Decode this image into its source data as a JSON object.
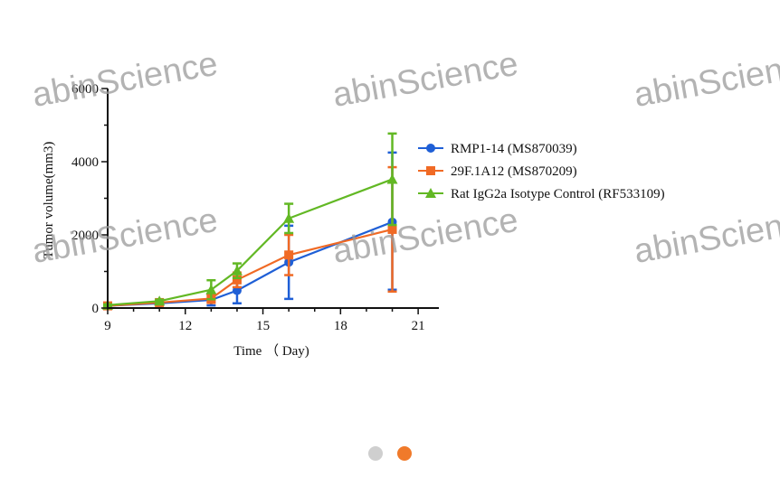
{
  "chart_data": {
    "type": "line",
    "xlabel": "Time （ Day)",
    "ylabel": "Tumor volume(mm3)",
    "xlim": [
      9,
      21.8
    ],
    "ylim": [
      0,
      6000
    ],
    "xticks": [
      9,
      12,
      15,
      18,
      21
    ],
    "yticks": [
      0,
      2000,
      4000,
      6000
    ],
    "legend_position": "right",
    "series": [
      {
        "name": "RMP1-14 (MS870039)",
        "color": "#1f5fd6",
        "marker": "circle",
        "x": [
          9,
          11,
          13,
          14,
          16,
          20
        ],
        "y": [
          60,
          130,
          220,
          480,
          1250,
          2350
        ],
        "err_low": [
          20,
          30,
          150,
          350,
          1000,
          1850
        ],
        "err_high": [
          20,
          30,
          150,
          350,
          1000,
          1900
        ]
      },
      {
        "name": "29F.1A12 (MS870209)",
        "color": "#f06a25",
        "marker": "square",
        "x": [
          9,
          11,
          13,
          14,
          16,
          20
        ],
        "y": [
          60,
          150,
          260,
          770,
          1450,
          2150
        ],
        "err_low": [
          20,
          40,
          120,
          200,
          550,
          1700
        ],
        "err_high": [
          20,
          40,
          120,
          200,
          550,
          1700
        ]
      },
      {
        "name": "Rat IgG2a Isotype Control (RF533109)",
        "color": "#62b824",
        "marker": "triangle",
        "x": [
          9,
          11,
          13,
          14,
          16,
          20
        ],
        "y": [
          80,
          190,
          500,
          1020,
          2450,
          3520
        ],
        "err_low": [
          20,
          40,
          260,
          200,
          400,
          1250
        ],
        "err_high": [
          20,
          40,
          260,
          200,
          400,
          1250
        ]
      }
    ]
  },
  "watermarks": [
    "abinScience",
    "abinScience",
    "abinScience",
    "abinScience",
    "abinScience",
    "abinScience"
  ],
  "carousel": {
    "dot_colors": [
      "#cfcfcf",
      "#f07a2a"
    ]
  }
}
